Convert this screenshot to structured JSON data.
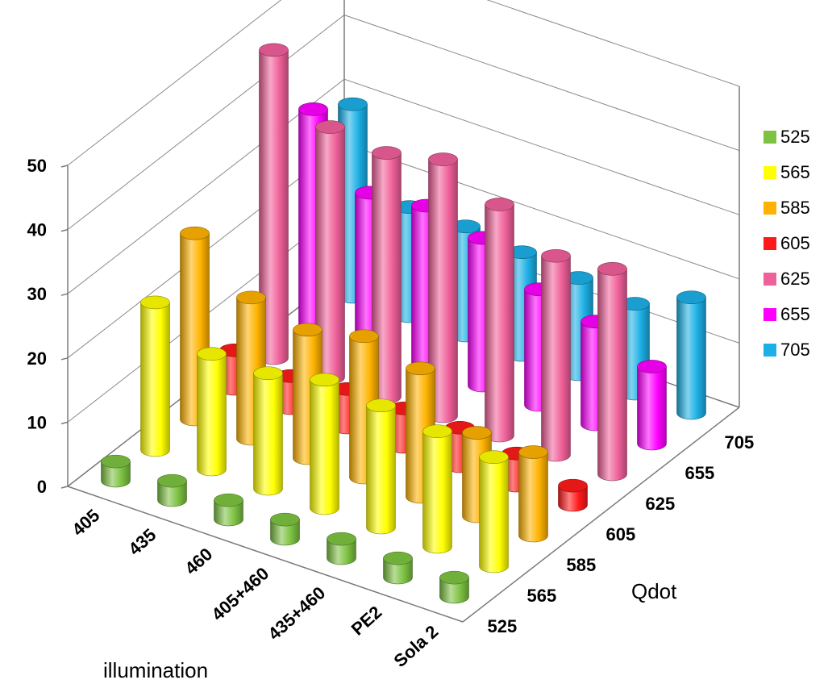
{
  "chart_data": {
    "type": "bar3d",
    "xlabel": "illumination",
    "zlabel": "Qdot",
    "ylabel": "",
    "title": "",
    "x_categories": [
      "405",
      "435",
      "460",
      "405+460",
      "435+460",
      "PE2",
      "Sola 2"
    ],
    "ylim": [
      0,
      50
    ],
    "yticks": [
      0,
      10,
      20,
      30,
      40,
      50
    ],
    "grid": true,
    "legend_position": "right",
    "series": [
      {
        "name": "525",
        "color": "#7dc242",
        "values": [
          3,
          3,
          3,
          3,
          3,
          3,
          3
        ]
      },
      {
        "name": "565",
        "color": "#ffff00",
        "values": [
          23,
          18,
          18,
          20,
          19,
          18,
          17
        ]
      },
      {
        "name": "585",
        "color": "#ffb300",
        "values": [
          29,
          22,
          20,
          22,
          20,
          13,
          13
        ]
      },
      {
        "name": "605",
        "color": "#ff1a1a",
        "values": [
          6,
          5,
          6,
          6,
          6,
          5,
          3
        ]
      },
      {
        "name": "625",
        "color": "#f0609a",
        "values": [
          48,
          39,
          38,
          40,
          36,
          31,
          32
        ]
      },
      {
        "name": "655",
        "color": "#ff00ff",
        "values": [
          34,
          24,
          25,
          23,
          18,
          16,
          12
        ]
      },
      {
        "name": "705",
        "color": "#1cb0e6",
        "values": [
          30,
          17,
          17,
          16,
          15,
          14,
          18
        ]
      }
    ]
  }
}
